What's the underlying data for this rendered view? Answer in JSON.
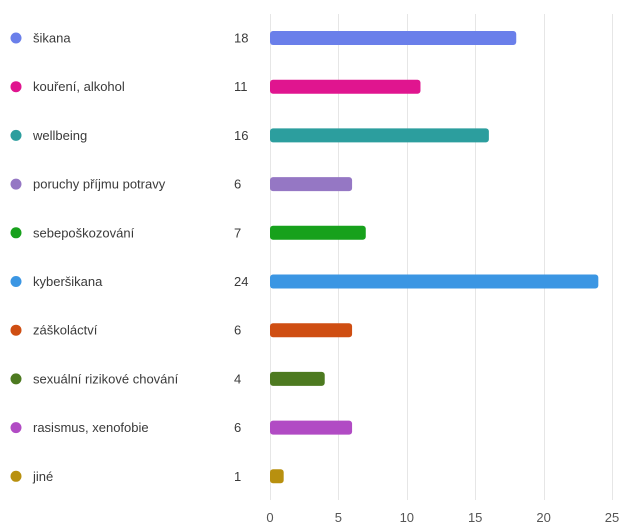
{
  "chart_data": {
    "type": "bar",
    "orientation": "horizontal",
    "categories": [
      "šikana",
      "kouření, alkohol",
      "wellbeing",
      "poruchy příjmu potravy",
      "sebepoškozování",
      "kyberšikana",
      "záškoláctví",
      "sexuální rizikové chování",
      "rasismus, xenofobie",
      "jiné"
    ],
    "values": [
      18,
      11,
      16,
      6,
      7,
      24,
      6,
      4,
      6,
      1
    ],
    "colors": [
      "#6a7fea",
      "#e0158f",
      "#2c9e9e",
      "#9577c4",
      "#17a11c",
      "#3b96e3",
      "#cf4e12",
      "#4d7a20",
      "#b14bc4",
      "#b8900f"
    ],
    "xlim": [
      0,
      25
    ],
    "xticks": [
      0,
      5,
      10,
      15,
      20,
      25
    ],
    "grid": true,
    "legend": "left"
  }
}
